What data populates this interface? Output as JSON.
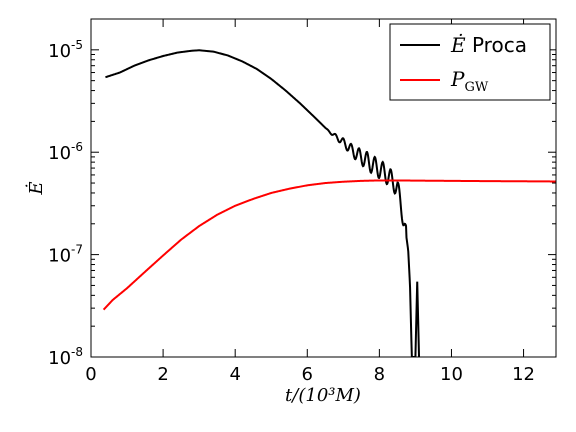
{
  "chart_data": {
    "type": "line",
    "xlabel": "t/(10³M)",
    "ylabel": "Ė",
    "yscale": "log",
    "xlim": [
      0,
      12.9
    ],
    "ylim": [
      1e-08,
      2e-05
    ],
    "x_ticks": [
      {
        "value": 0,
        "label": "0"
      },
      {
        "value": 2,
        "label": "2"
      },
      {
        "value": 4,
        "label": "4"
      },
      {
        "value": 6,
        "label": "6"
      },
      {
        "value": 8,
        "label": "8"
      },
      {
        "value": 10,
        "label": "10"
      },
      {
        "value": 12,
        "label": "12"
      }
    ],
    "y_ticks": [
      {
        "value": 1e-08,
        "base": "10",
        "exp": "-8"
      },
      {
        "value": 1e-07,
        "base": "10",
        "exp": "-7"
      },
      {
        "value": 1e-06,
        "base": "10",
        "exp": "-6"
      },
      {
        "value": 1e-05,
        "base": "10",
        "exp": "-5"
      }
    ],
    "grid": false,
    "legend_position": "top-right",
    "series": [
      {
        "name": "Ė Proca",
        "legend_math": "Ė",
        "legend_text": " Proca",
        "color": "#000000",
        "x": [
          0.4,
          0.8,
          1.2,
          1.6,
          2.0,
          2.4,
          2.8,
          3.0,
          3.4,
          3.8,
          4.2,
          4.6,
          5.0,
          5.4,
          5.8,
          6.2,
          6.6,
          7.0,
          7.3,
          7.6,
          7.9,
          8.1,
          8.3,
          8.5,
          8.6,
          8.7,
          8.8,
          8.85,
          8.9,
          8.95,
          9.0,
          9.05,
          9.1
        ],
        "y": [
          5.4e-06,
          6e-06,
          7e-06,
          7.9e-06,
          8.7e-06,
          9.4e-06,
          9.8e-06,
          9.9e-06,
          9.6e-06,
          8.8e-06,
          7.7e-06,
          6.5e-06,
          5.2e-06,
          4e-06,
          3e-06,
          2.2e-06,
          1.6e-06,
          1.25e-06,
          1e-06,
          8.5e-07,
          7.2e-07,
          6.5e-07,
          5.6e-07,
          4.5e-07,
          3e-07,
          2e-07,
          1.1e-07,
          5e-08,
          1e-08,
          1e-08,
          1e-08,
          5.5e-08,
          1e-08
        ],
        "oscillation": {
          "start_x": 6.5,
          "amplitude_decades": 0.09,
          "period": 0.22
        }
      },
      {
        "name": "P_GW",
        "legend_math": "P",
        "legend_sub": "GW",
        "color": "#ff0000",
        "x": [
          0.35,
          0.6,
          1.0,
          1.5,
          2.0,
          2.5,
          3.0,
          3.5,
          4.0,
          4.5,
          5.0,
          5.5,
          6.0,
          6.5,
          7.0,
          7.5,
          8.0,
          8.5,
          9.0,
          10.0,
          11.0,
          12.0,
          12.9
        ],
        "y": [
          2.9e-08,
          3.6e-08,
          4.7e-08,
          6.8e-08,
          9.8e-08,
          1.4e-07,
          1.9e-07,
          2.45e-07,
          3e-07,
          3.5e-07,
          4e-07,
          4.4e-07,
          4.75e-07,
          5e-07,
          5.15e-07,
          5.25e-07,
          5.3e-07,
          5.3e-07,
          5.28e-07,
          5.25e-07,
          5.22e-07,
          5.2e-07,
          5.18e-07
        ]
      }
    ]
  }
}
